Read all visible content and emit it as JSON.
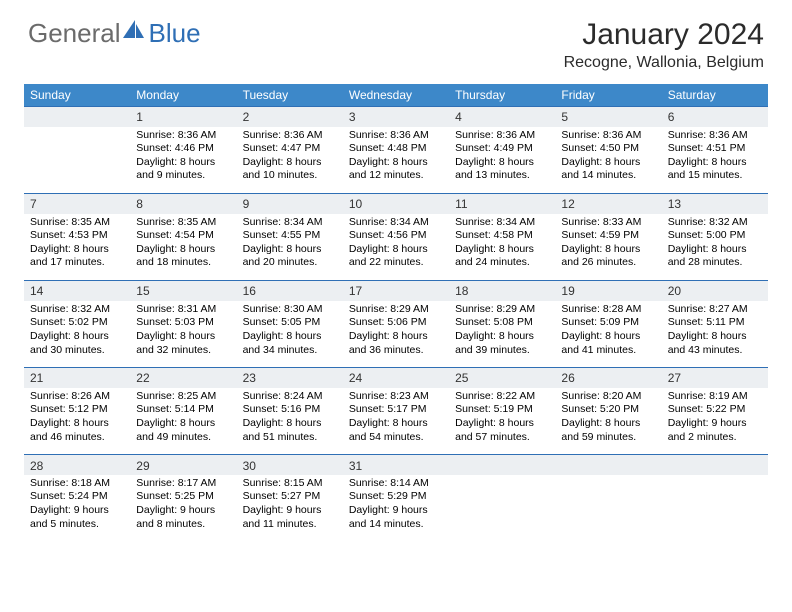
{
  "logo": {
    "general": "General",
    "blue": "Blue"
  },
  "title": "January 2024",
  "location": "Recogne, Wallonia, Belgium",
  "colors": {
    "header_bg": "#3d88c9",
    "border": "#2f6fb5",
    "daynum_bg": "#eceff2",
    "text": "#000000",
    "logo_gray": "#6b6b6b",
    "logo_blue": "#2f6fb5"
  },
  "dow": [
    "Sunday",
    "Monday",
    "Tuesday",
    "Wednesday",
    "Thursday",
    "Friday",
    "Saturday"
  ],
  "weeks": [
    {
      "nums": [
        "",
        "1",
        "2",
        "3",
        "4",
        "5",
        "6"
      ],
      "cells": [
        null,
        {
          "sr": "Sunrise: 8:36 AM",
          "ss": "Sunset: 4:46 PM",
          "d1": "Daylight: 8 hours",
          "d2": "and 9 minutes."
        },
        {
          "sr": "Sunrise: 8:36 AM",
          "ss": "Sunset: 4:47 PM",
          "d1": "Daylight: 8 hours",
          "d2": "and 10 minutes."
        },
        {
          "sr": "Sunrise: 8:36 AM",
          "ss": "Sunset: 4:48 PM",
          "d1": "Daylight: 8 hours",
          "d2": "and 12 minutes."
        },
        {
          "sr": "Sunrise: 8:36 AM",
          "ss": "Sunset: 4:49 PM",
          "d1": "Daylight: 8 hours",
          "d2": "and 13 minutes."
        },
        {
          "sr": "Sunrise: 8:36 AM",
          "ss": "Sunset: 4:50 PM",
          "d1": "Daylight: 8 hours",
          "d2": "and 14 minutes."
        },
        {
          "sr": "Sunrise: 8:36 AM",
          "ss": "Sunset: 4:51 PM",
          "d1": "Daylight: 8 hours",
          "d2": "and 15 minutes."
        }
      ]
    },
    {
      "nums": [
        "7",
        "8",
        "9",
        "10",
        "11",
        "12",
        "13"
      ],
      "cells": [
        {
          "sr": "Sunrise: 8:35 AM",
          "ss": "Sunset: 4:53 PM",
          "d1": "Daylight: 8 hours",
          "d2": "and 17 minutes."
        },
        {
          "sr": "Sunrise: 8:35 AM",
          "ss": "Sunset: 4:54 PM",
          "d1": "Daylight: 8 hours",
          "d2": "and 18 minutes."
        },
        {
          "sr": "Sunrise: 8:34 AM",
          "ss": "Sunset: 4:55 PM",
          "d1": "Daylight: 8 hours",
          "d2": "and 20 minutes."
        },
        {
          "sr": "Sunrise: 8:34 AM",
          "ss": "Sunset: 4:56 PM",
          "d1": "Daylight: 8 hours",
          "d2": "and 22 minutes."
        },
        {
          "sr": "Sunrise: 8:34 AM",
          "ss": "Sunset: 4:58 PM",
          "d1": "Daylight: 8 hours",
          "d2": "and 24 minutes."
        },
        {
          "sr": "Sunrise: 8:33 AM",
          "ss": "Sunset: 4:59 PM",
          "d1": "Daylight: 8 hours",
          "d2": "and 26 minutes."
        },
        {
          "sr": "Sunrise: 8:32 AM",
          "ss": "Sunset: 5:00 PM",
          "d1": "Daylight: 8 hours",
          "d2": "and 28 minutes."
        }
      ]
    },
    {
      "nums": [
        "14",
        "15",
        "16",
        "17",
        "18",
        "19",
        "20"
      ],
      "cells": [
        {
          "sr": "Sunrise: 8:32 AM",
          "ss": "Sunset: 5:02 PM",
          "d1": "Daylight: 8 hours",
          "d2": "and 30 minutes."
        },
        {
          "sr": "Sunrise: 8:31 AM",
          "ss": "Sunset: 5:03 PM",
          "d1": "Daylight: 8 hours",
          "d2": "and 32 minutes."
        },
        {
          "sr": "Sunrise: 8:30 AM",
          "ss": "Sunset: 5:05 PM",
          "d1": "Daylight: 8 hours",
          "d2": "and 34 minutes."
        },
        {
          "sr": "Sunrise: 8:29 AM",
          "ss": "Sunset: 5:06 PM",
          "d1": "Daylight: 8 hours",
          "d2": "and 36 minutes."
        },
        {
          "sr": "Sunrise: 8:29 AM",
          "ss": "Sunset: 5:08 PM",
          "d1": "Daylight: 8 hours",
          "d2": "and 39 minutes."
        },
        {
          "sr": "Sunrise: 8:28 AM",
          "ss": "Sunset: 5:09 PM",
          "d1": "Daylight: 8 hours",
          "d2": "and 41 minutes."
        },
        {
          "sr": "Sunrise: 8:27 AM",
          "ss": "Sunset: 5:11 PM",
          "d1": "Daylight: 8 hours",
          "d2": "and 43 minutes."
        }
      ]
    },
    {
      "nums": [
        "21",
        "22",
        "23",
        "24",
        "25",
        "26",
        "27"
      ],
      "cells": [
        {
          "sr": "Sunrise: 8:26 AM",
          "ss": "Sunset: 5:12 PM",
          "d1": "Daylight: 8 hours",
          "d2": "and 46 minutes."
        },
        {
          "sr": "Sunrise: 8:25 AM",
          "ss": "Sunset: 5:14 PM",
          "d1": "Daylight: 8 hours",
          "d2": "and 49 minutes."
        },
        {
          "sr": "Sunrise: 8:24 AM",
          "ss": "Sunset: 5:16 PM",
          "d1": "Daylight: 8 hours",
          "d2": "and 51 minutes."
        },
        {
          "sr": "Sunrise: 8:23 AM",
          "ss": "Sunset: 5:17 PM",
          "d1": "Daylight: 8 hours",
          "d2": "and 54 minutes."
        },
        {
          "sr": "Sunrise: 8:22 AM",
          "ss": "Sunset: 5:19 PM",
          "d1": "Daylight: 8 hours",
          "d2": "and 57 minutes."
        },
        {
          "sr": "Sunrise: 8:20 AM",
          "ss": "Sunset: 5:20 PM",
          "d1": "Daylight: 8 hours",
          "d2": "and 59 minutes."
        },
        {
          "sr": "Sunrise: 8:19 AM",
          "ss": "Sunset: 5:22 PM",
          "d1": "Daylight: 9 hours",
          "d2": "and 2 minutes."
        }
      ]
    },
    {
      "nums": [
        "28",
        "29",
        "30",
        "31",
        "",
        "",
        ""
      ],
      "cells": [
        {
          "sr": "Sunrise: 8:18 AM",
          "ss": "Sunset: 5:24 PM",
          "d1": "Daylight: 9 hours",
          "d2": "and 5 minutes."
        },
        {
          "sr": "Sunrise: 8:17 AM",
          "ss": "Sunset: 5:25 PM",
          "d1": "Daylight: 9 hours",
          "d2": "and 8 minutes."
        },
        {
          "sr": "Sunrise: 8:15 AM",
          "ss": "Sunset: 5:27 PM",
          "d1": "Daylight: 9 hours",
          "d2": "and 11 minutes."
        },
        {
          "sr": "Sunrise: 8:14 AM",
          "ss": "Sunset: 5:29 PM",
          "d1": "Daylight: 9 hours",
          "d2": "and 14 minutes."
        },
        null,
        null,
        null
      ]
    }
  ]
}
